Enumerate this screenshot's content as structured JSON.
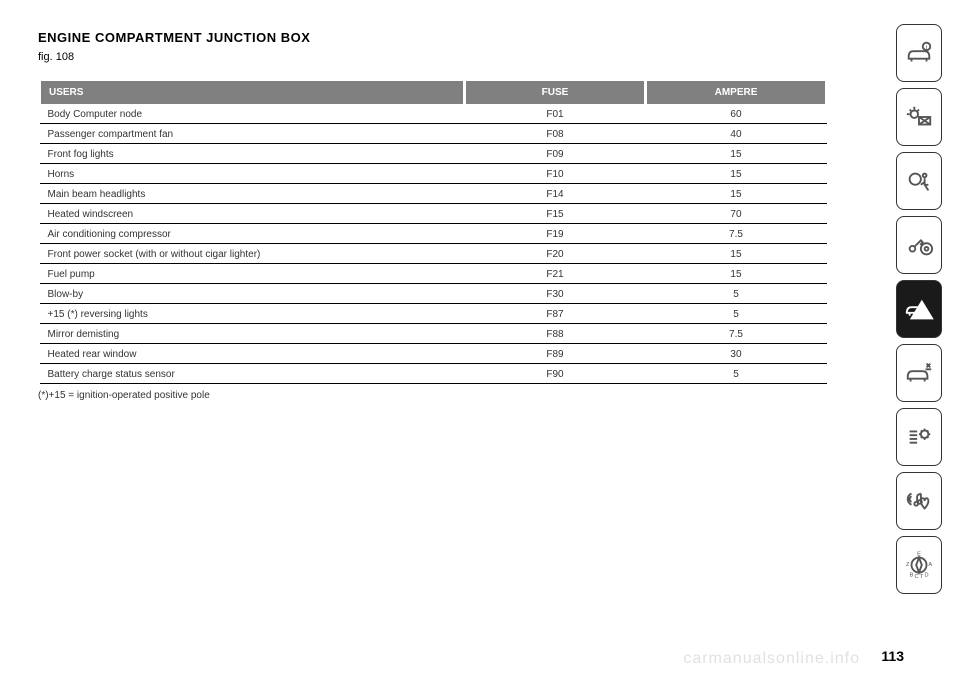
{
  "page": {
    "title": "ENGINE COMPARTMENT JUNCTION BOX",
    "subtitle": "fig. 108",
    "footnote": "(*)+15 = ignition-operated positive pole",
    "page_number": "113",
    "watermark": "carmanualsonline.info"
  },
  "table": {
    "header_bg": "#808080",
    "header_fg": "#ffffff",
    "row_border": "#000000",
    "columns": [
      "USERS",
      "FUSE",
      "AMPERE"
    ],
    "rows": [
      [
        "Body Computer node",
        "F01",
        "60"
      ],
      [
        "Passenger compartment fan",
        "F08",
        "40"
      ],
      [
        "Front fog lights",
        "F09",
        "15"
      ],
      [
        "Horns",
        "F10",
        "15"
      ],
      [
        "Main beam headlights",
        "F14",
        "15"
      ],
      [
        "Heated windscreen",
        "F15",
        "70"
      ],
      [
        "Air conditioning compressor",
        "F19",
        "7.5"
      ],
      [
        "Front power socket (with or without cigar lighter)",
        "F20",
        "15"
      ],
      [
        "Fuel pump",
        "F21",
        "15"
      ],
      [
        "Blow-by",
        "F30",
        "5"
      ],
      [
        "+15 (*) reversing lights",
        "F87",
        "5"
      ],
      [
        "Mirror demisting",
        "F88",
        "7.5"
      ],
      [
        "Heated rear window",
        "F89",
        "30"
      ],
      [
        "Battery charge status sensor",
        "F90",
        "5"
      ]
    ]
  },
  "sidebar": {
    "icons": [
      {
        "name": "car-info-icon",
        "active": false
      },
      {
        "name": "dashboard-light-icon",
        "active": false
      },
      {
        "name": "airbag-seat-icon",
        "active": false
      },
      {
        "name": "key-steering-icon",
        "active": false
      },
      {
        "name": "car-warning-icon",
        "active": true
      },
      {
        "name": "car-service-icon",
        "active": false
      },
      {
        "name": "settings-list-icon",
        "active": false
      },
      {
        "name": "media-nav-icon",
        "active": false
      },
      {
        "name": "compass-icon",
        "active": false
      }
    ]
  }
}
